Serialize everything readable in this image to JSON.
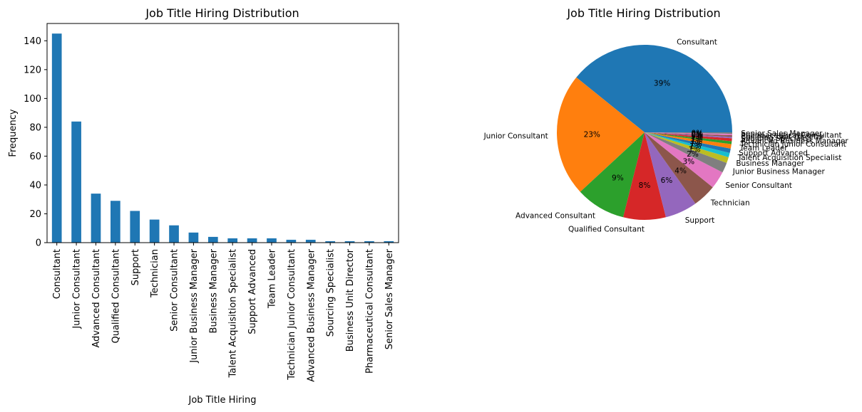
{
  "chart_data": [
    {
      "type": "bar",
      "title": "Job Title Hiring Distribution",
      "xlabel": "Job Title Hiring",
      "ylabel": "Frequency",
      "ylim": [
        0,
        152
      ],
      "yticks": [
        0,
        20,
        40,
        60,
        80,
        100,
        120,
        140
      ],
      "grid": false,
      "color": "#1f77b4",
      "categories": [
        "Consultant",
        "Junior Consultant",
        "Advanced Consultant",
        "Qualified Consultant",
        "Support",
        "Technician",
        "Senior Consultant",
        "Junior Business Manager",
        "Business Manager",
        "Talent Acquisition Specialist",
        "Support Advanced",
        "Team Leader",
        "Technician Junior Consultant",
        "Advanced Business Manager",
        "Sourcing Specialist",
        "Business Unit Director",
        "Pharmaceutical Consultant",
        "Senior Sales Manager"
      ],
      "values": [
        145,
        84,
        34,
        29,
        22,
        16,
        12,
        7,
        4,
        3,
        3,
        3,
        2,
        2,
        1,
        1,
        1,
        1
      ]
    },
    {
      "type": "pie",
      "title": "Job Title Hiring Distribution",
      "labels": [
        "Consultant",
        "Junior Consultant",
        "Advanced Consultant",
        "Qualified Consultant",
        "Support",
        "Technician",
        "Senior Consultant",
        "Junior Business Manager",
        "Business Manager",
        "Talent Acquisition Specialist",
        "Support Advanced",
        "Team Leader",
        "Technician Junior Consultant",
        "Advanced Business Manager",
        "Sourcing Specialist",
        "Business Unit Director",
        "Pharmaceutical Consultant",
        "Senior Sales Manager"
      ],
      "values": [
        145,
        84,
        34,
        29,
        22,
        16,
        12,
        7,
        4,
        3,
        3,
        3,
        2,
        2,
        1,
        1,
        1,
        1
      ],
      "percent_labels": [
        "39%",
        "23%",
        "9%",
        "8%",
        "6%",
        "4%",
        "3%",
        "2%",
        "1%",
        "1%",
        "1%",
        "1%",
        "1%",
        "1%",
        "0%",
        "0%",
        "0%",
        "0%"
      ],
      "colors": [
        "#1f77b4",
        "#ff7f0e",
        "#2ca02c",
        "#d62728",
        "#9467bd",
        "#8c564b",
        "#e377c2",
        "#7f7f7f",
        "#bcbd22",
        "#17becf",
        "#1f77b4",
        "#ff7f0e",
        "#2ca02c",
        "#d62728",
        "#9467bd",
        "#8c564b",
        "#e377c2",
        "#7f7f7f"
      ]
    }
  ]
}
